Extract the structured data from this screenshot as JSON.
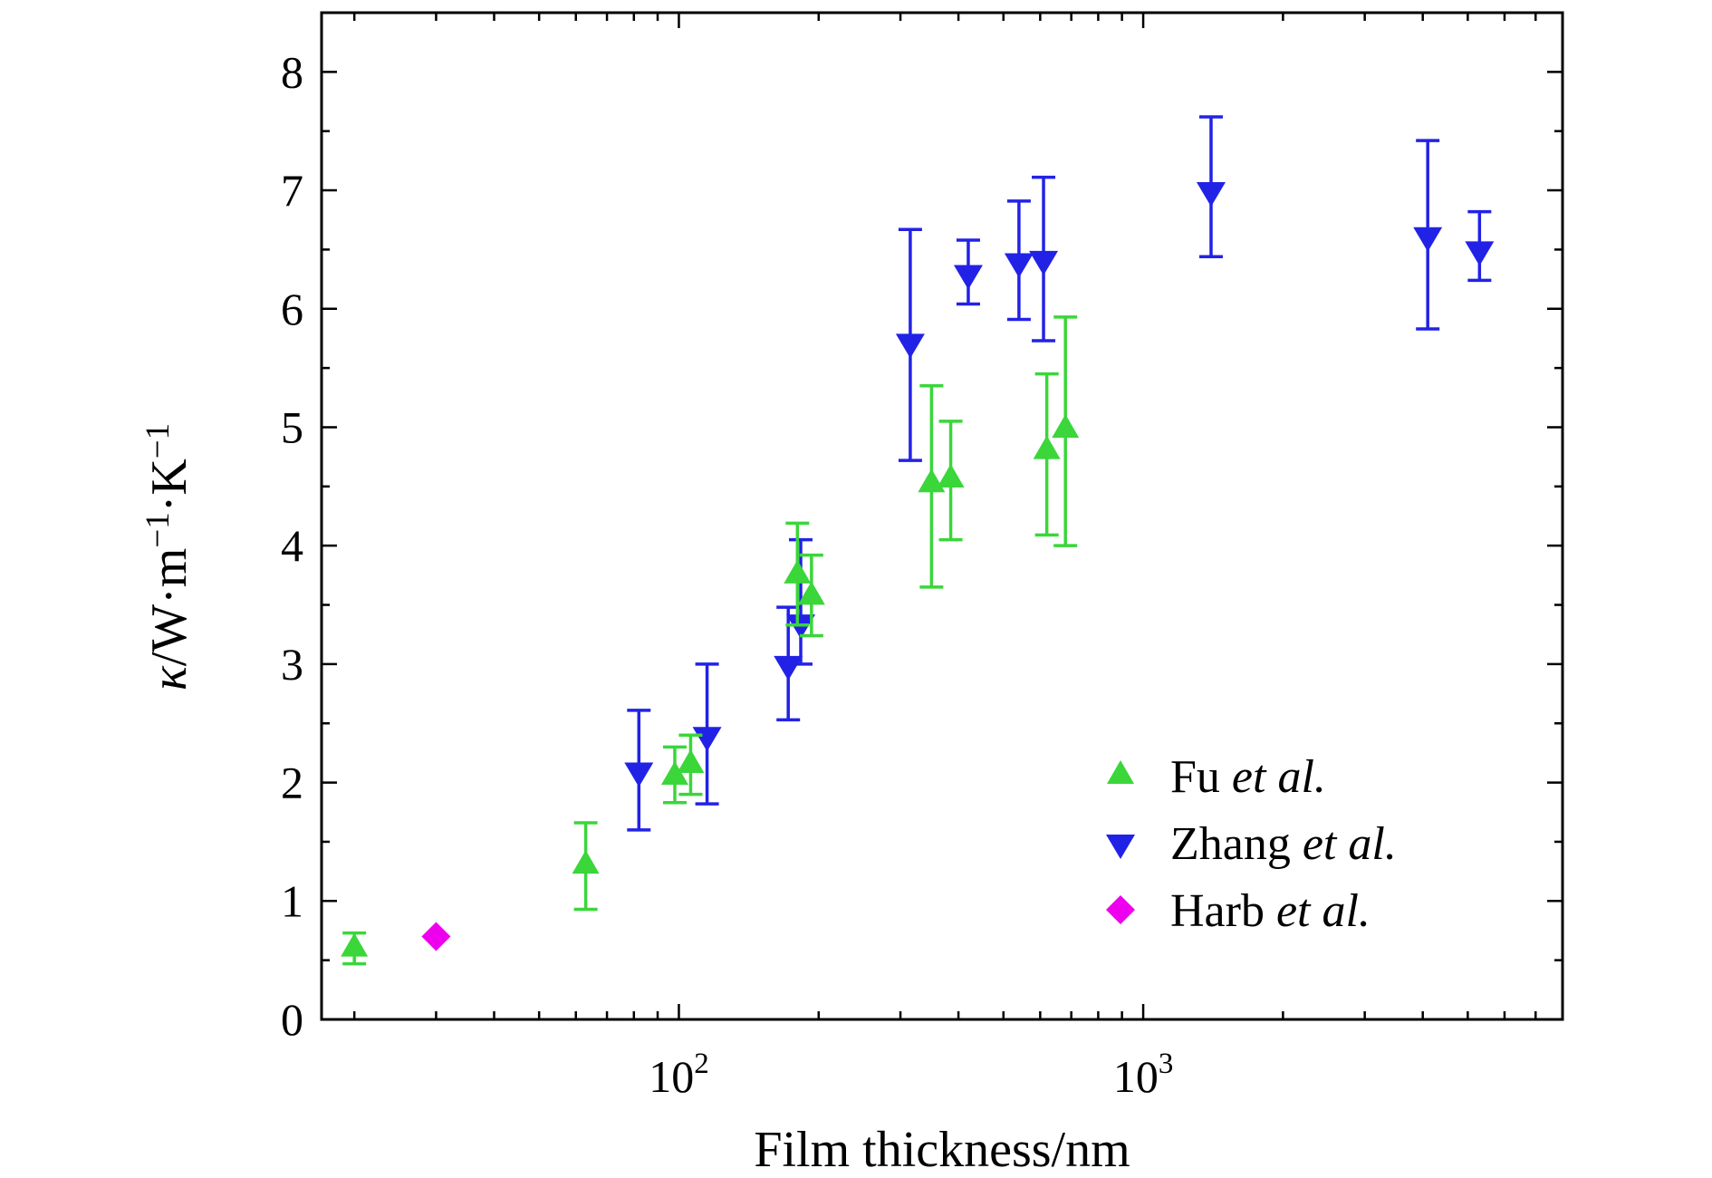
{
  "page": {
    "background": "#ffffff"
  },
  "chart_data": {
    "type": "scatter",
    "title": "",
    "xlabel": "Film thickness/nm",
    "ylabel_parts": [
      {
        "t": "κ",
        "italic": true
      },
      {
        "t": "/W·m"
      },
      {
        "t": "−1",
        "sup": true
      },
      {
        "t": "·K"
      },
      {
        "t": "−1",
        "sup": true
      }
    ],
    "x_scale": "log",
    "xlim": [
      17,
      8000
    ],
    "ylim": [
      0,
      8.5
    ],
    "grid": false,
    "legend_position": "lower-right",
    "x_major_ticks": [
      {
        "value": 100,
        "base": "10",
        "exp": "2"
      },
      {
        "value": 1000,
        "base": "10",
        "exp": "3"
      }
    ],
    "x_minor_ticks": [
      20,
      30,
      40,
      50,
      60,
      70,
      80,
      90,
      200,
      300,
      400,
      500,
      600,
      700,
      800,
      900,
      2000,
      3000,
      4000,
      5000,
      6000,
      7000
    ],
    "y_major_ticks": [
      0,
      1,
      2,
      3,
      4,
      5,
      6,
      7,
      8
    ],
    "y_minor_ticks": [
      0.5,
      1.5,
      2.5,
      3.5,
      4.5,
      5.5,
      6.5,
      7.5
    ],
    "series": [
      {
        "id": "fu",
        "label_regular": "Fu ",
        "label_italic": "et al.",
        "marker": "triangle-up",
        "color": "#3ad63a",
        "zorder": 2,
        "points": [
          {
            "x": 20,
            "y": 0.6,
            "ep": 0.13,
            "em": 0.13
          },
          {
            "x": 63,
            "y": 1.3,
            "ep": 0.36,
            "em": 0.37
          },
          {
            "x": 98,
            "y": 2.05,
            "ep": 0.25,
            "em": 0.22
          },
          {
            "x": 106,
            "y": 2.15,
            "ep": 0.25,
            "em": 0.25
          },
          {
            "x": 180,
            "y": 3.75,
            "ep": 0.44,
            "em": 0.42
          },
          {
            "x": 193,
            "y": 3.57,
            "ep": 0.35,
            "em": 0.33
          },
          {
            "x": 350,
            "y": 4.52,
            "ep": 0.83,
            "em": 0.87
          },
          {
            "x": 385,
            "y": 4.56,
            "ep": 0.49,
            "em": 0.51
          },
          {
            "x": 620,
            "y": 4.8,
            "ep": 0.65,
            "em": 0.71
          },
          {
            "x": 680,
            "y": 4.98,
            "ep": 0.95,
            "em": 0.98
          }
        ]
      },
      {
        "id": "zhang",
        "label_regular": "Zhang ",
        "label_italic": "et al.",
        "marker": "triangle-down",
        "color": "#2222e6",
        "zorder": 1,
        "points": [
          {
            "x": 82,
            "y": 2.1,
            "ep": 0.51,
            "em": 0.5
          },
          {
            "x": 115,
            "y": 2.4,
            "ep": 0.6,
            "em": 0.58
          },
          {
            "x": 172,
            "y": 3.0,
            "ep": 0.48,
            "em": 0.47
          },
          {
            "x": 183,
            "y": 3.35,
            "ep": 0.7,
            "em": 0.35
          },
          {
            "x": 315,
            "y": 5.72,
            "ep": 0.95,
            "em": 1.0
          },
          {
            "x": 420,
            "y": 6.3,
            "ep": 0.28,
            "em": 0.26
          },
          {
            "x": 540,
            "y": 6.4,
            "ep": 0.51,
            "em": 0.49
          },
          {
            "x": 610,
            "y": 6.42,
            "ep": 0.69,
            "em": 0.69
          },
          {
            "x": 1400,
            "y": 7.0,
            "ep": 0.62,
            "em": 0.56
          },
          {
            "x": 4100,
            "y": 6.62,
            "ep": 0.8,
            "em": 0.79
          },
          {
            "x": 5300,
            "y": 6.5,
            "ep": 0.32,
            "em": 0.26
          }
        ]
      },
      {
        "id": "harb",
        "label_regular": "Harb ",
        "label_italic": "et al.",
        "marker": "diamond",
        "color": "#ee00ee",
        "zorder": 3,
        "points": [
          {
            "x": 30,
            "y": 0.7
          }
        ]
      }
    ]
  }
}
